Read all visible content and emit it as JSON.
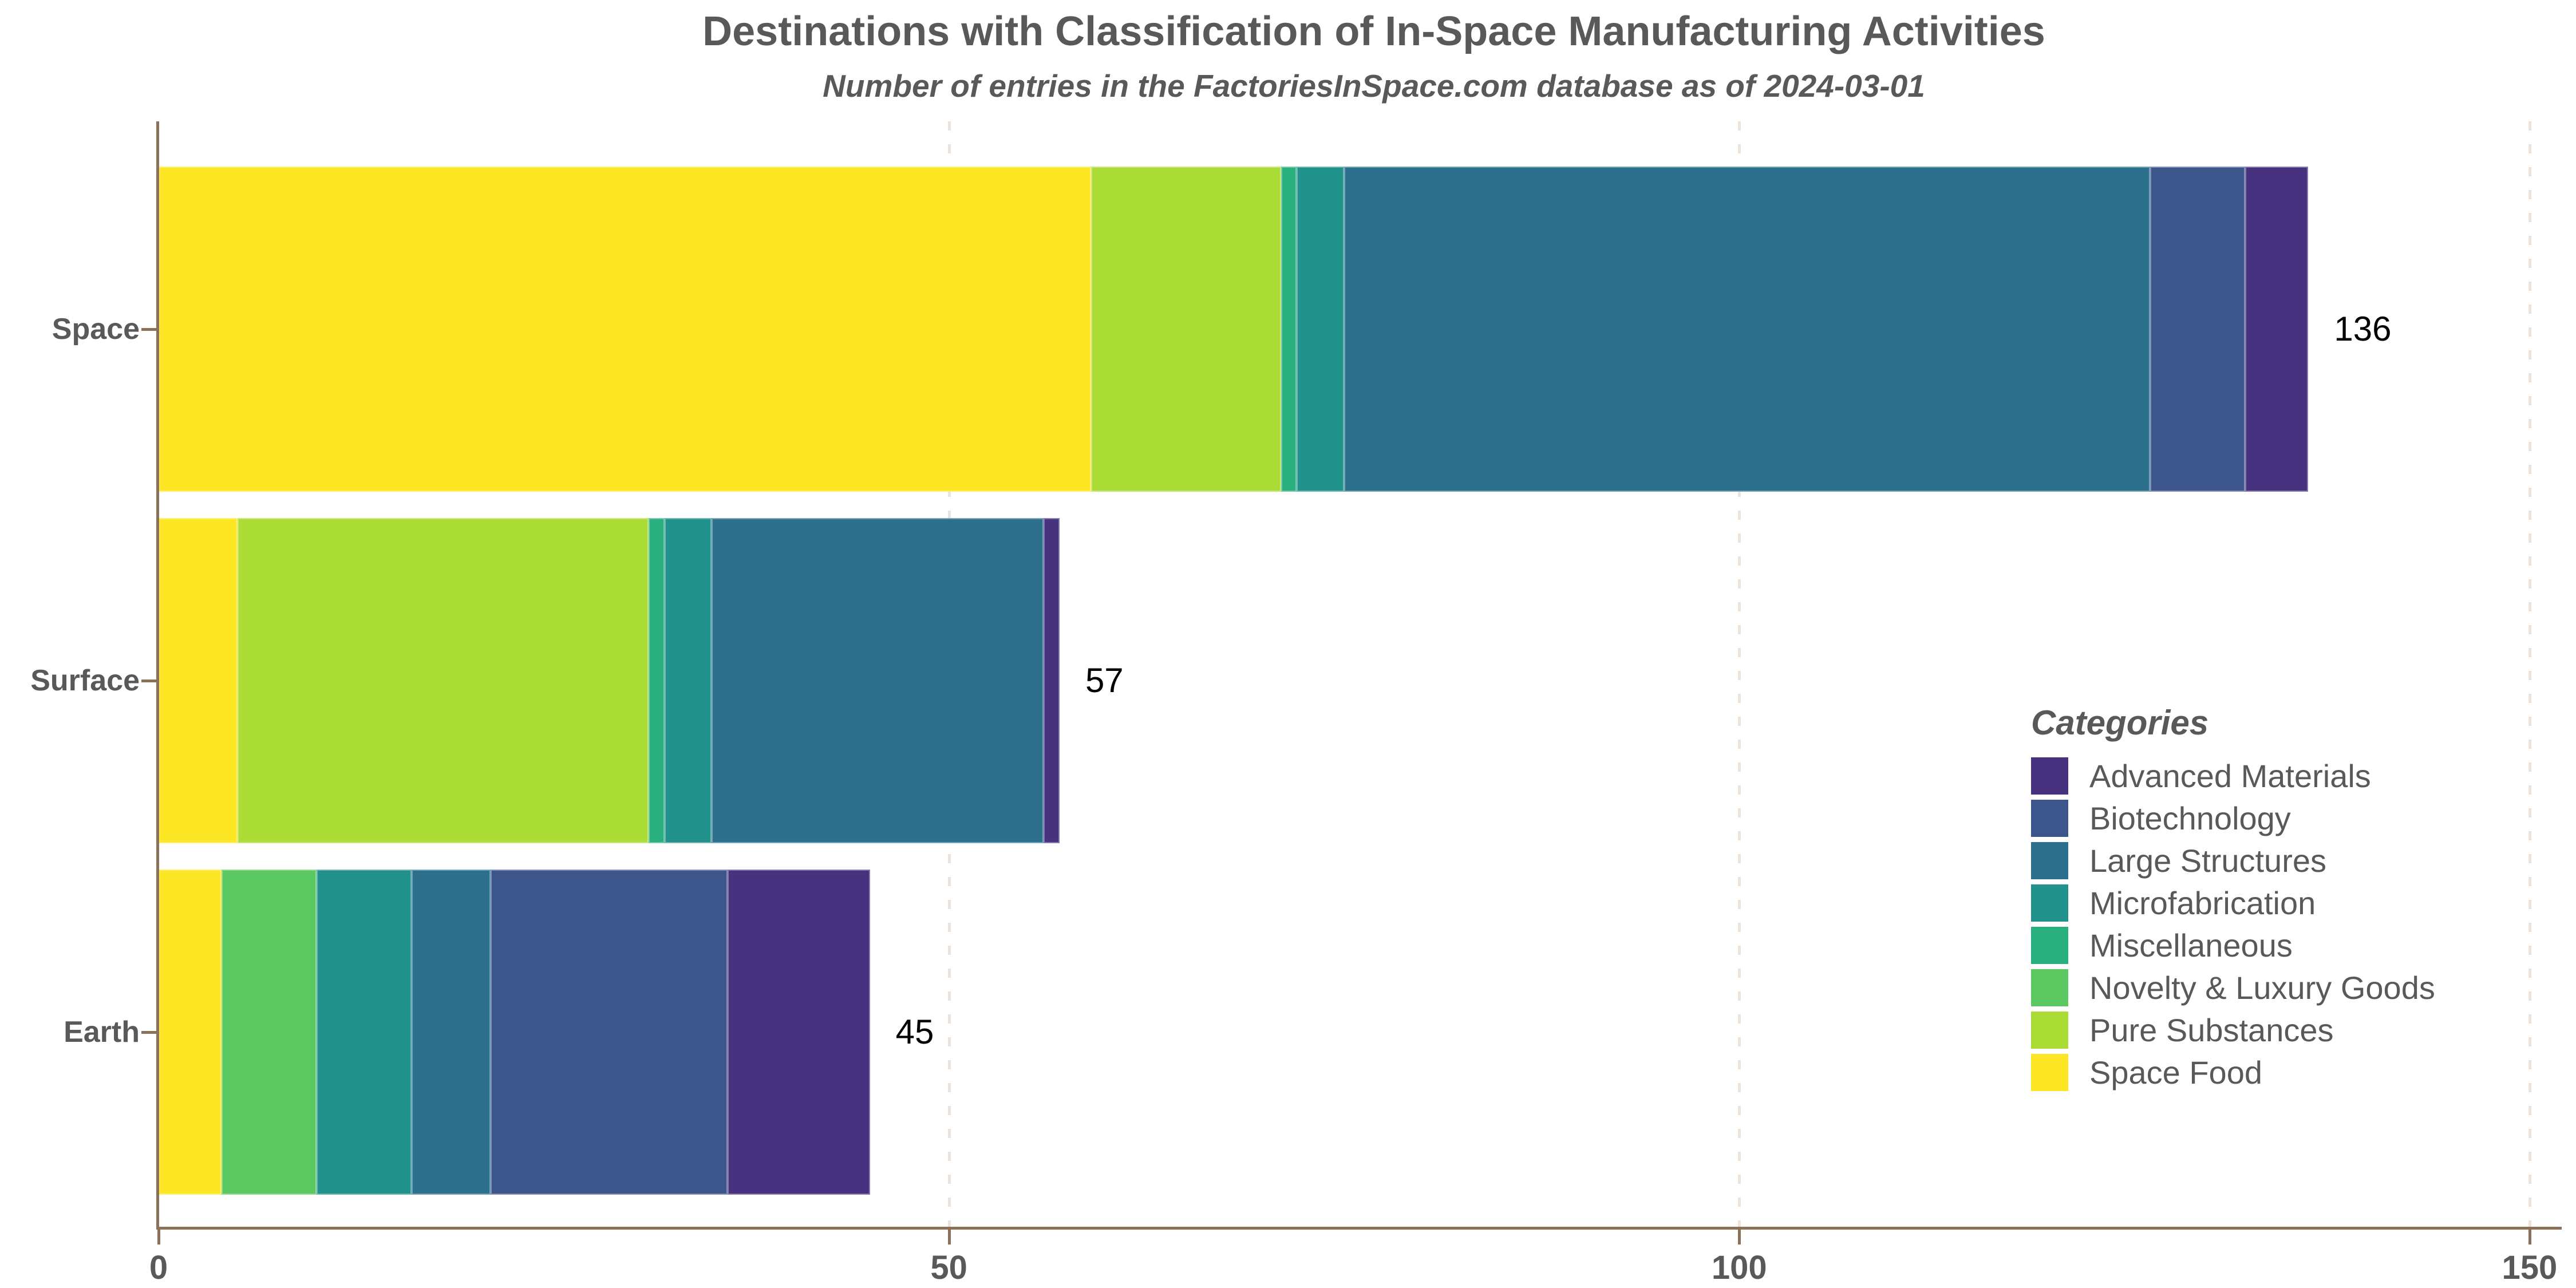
{
  "title": "Destinations with Classification of In-Space Manufacturing Activities",
  "subtitle": "Number of entries in the FactoriesInSpace.com database as of 2024-03-01",
  "style": {
    "axis_color": "#8a7157",
    "grid_color": "#ece4da",
    "text_color": "#595959",
    "value_label_color": "#000000",
    "background": "#ffffff"
  },
  "chart_data": {
    "type": "bar",
    "orientation": "horizontal",
    "stacked": true,
    "title": "Destinations with Classification of In-Space Manufacturing Activities",
    "subtitle": "Number of entries in the FactoriesInSpace.com database as of 2024-03-01",
    "categories": [
      "Space",
      "Surface",
      "Earth"
    ],
    "series": [
      {
        "name": "Space Food",
        "color": "#fde725",
        "values": [
          59,
          5,
          4
        ]
      },
      {
        "name": "Pure Substances",
        "color": "#abdc35",
        "values": [
          12,
          26,
          0
        ]
      },
      {
        "name": "Novelty & Luxury Goods",
        "color": "#5bc862",
        "values": [
          0,
          0,
          6
        ]
      },
      {
        "name": "Miscellaneous",
        "color": "#2ab07f",
        "values": [
          1,
          1,
          0
        ]
      },
      {
        "name": "Microfabrication",
        "color": "#21918c",
        "values": [
          3,
          3,
          6
        ]
      },
      {
        "name": "Large Structures",
        "color": "#2d708e",
        "values": [
          51,
          21,
          5
        ]
      },
      {
        "name": "Biotechnology",
        "color": "#3c568c",
        "values": [
          6,
          0,
          15
        ]
      },
      {
        "name": "Advanced Materials",
        "color": "#46327e",
        "values": [
          4,
          1,
          9
        ]
      }
    ],
    "totals": [
      136,
      57,
      45
    ],
    "x_ticks": [
      0,
      50,
      100,
      150
    ],
    "xlim": [
      0,
      150
    ],
    "grid": "dashed-vertical-at-ticks",
    "legend_title": "Categories",
    "legend_position": "inside-right",
    "legend_order": [
      "Advanced Materials",
      "Biotechnology",
      "Large Structures",
      "Microfabrication",
      "Miscellaneous",
      "Novelty & Luxury Goods",
      "Pure Substances",
      "Space Food"
    ]
  }
}
